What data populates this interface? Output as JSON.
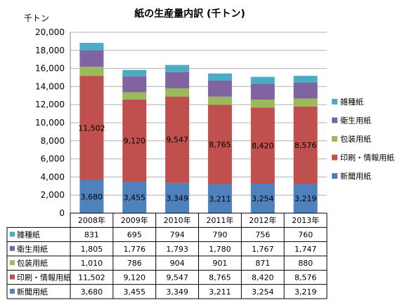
{
  "chart_data": {
    "type": "bar",
    "stacked": true,
    "title": "紙の生産量内訳 (千トン)",
    "ylabel": "千トン",
    "xlabel": "",
    "ylim": [
      0,
      20000
    ],
    "y_ticks": [
      "0",
      "2,000",
      "4,000",
      "6,000",
      "8,000",
      "10,000",
      "12,000",
      "14,000",
      "16,000",
      "18,000",
      "20,000"
    ],
    "grid": true,
    "legend_position": "right",
    "categories": [
      "2008年",
      "2009年",
      "2010年",
      "2011年",
      "2012年",
      "2013年"
    ],
    "series": [
      {
        "name": "新聞用紙",
        "color": "#4f81bd",
        "values": [
          3680,
          3455,
          3349,
          3211,
          3254,
          3219
        ],
        "labels": [
          "3,680",
          "3,455",
          "3,349",
          "3,211",
          "3,254",
          "3,219"
        ]
      },
      {
        "name": "印刷・情報用紙",
        "color": "#c0504d",
        "values": [
          11502,
          9120,
          9547,
          8765,
          8420,
          8576
        ],
        "labels": [
          "11,502",
          "9,120",
          "9,547",
          "8,765",
          "8,420",
          "8,576"
        ]
      },
      {
        "name": "包装用紙",
        "color": "#9bbb59",
        "values": [
          1010,
          786,
          904,
          901,
          871,
          880
        ],
        "labels": [
          "1,010",
          "786",
          "904",
          "901",
          "871",
          "880"
        ]
      },
      {
        "name": "衛生用紙",
        "color": "#8064a2",
        "values": [
          1805,
          1776,
          1793,
          1780,
          1767,
          1747
        ],
        "labels": [
          "1,805",
          "1,776",
          "1,793",
          "1,780",
          "1,767",
          "1,747"
        ]
      },
      {
        "name": "雑種紙",
        "color": "#4bacc6",
        "values": [
          831,
          695,
          794,
          790,
          756,
          760
        ],
        "labels": [
          "831",
          "695",
          "794",
          "790",
          "756",
          "760"
        ]
      }
    ],
    "data_labels_series": [
      0,
      1
    ]
  }
}
